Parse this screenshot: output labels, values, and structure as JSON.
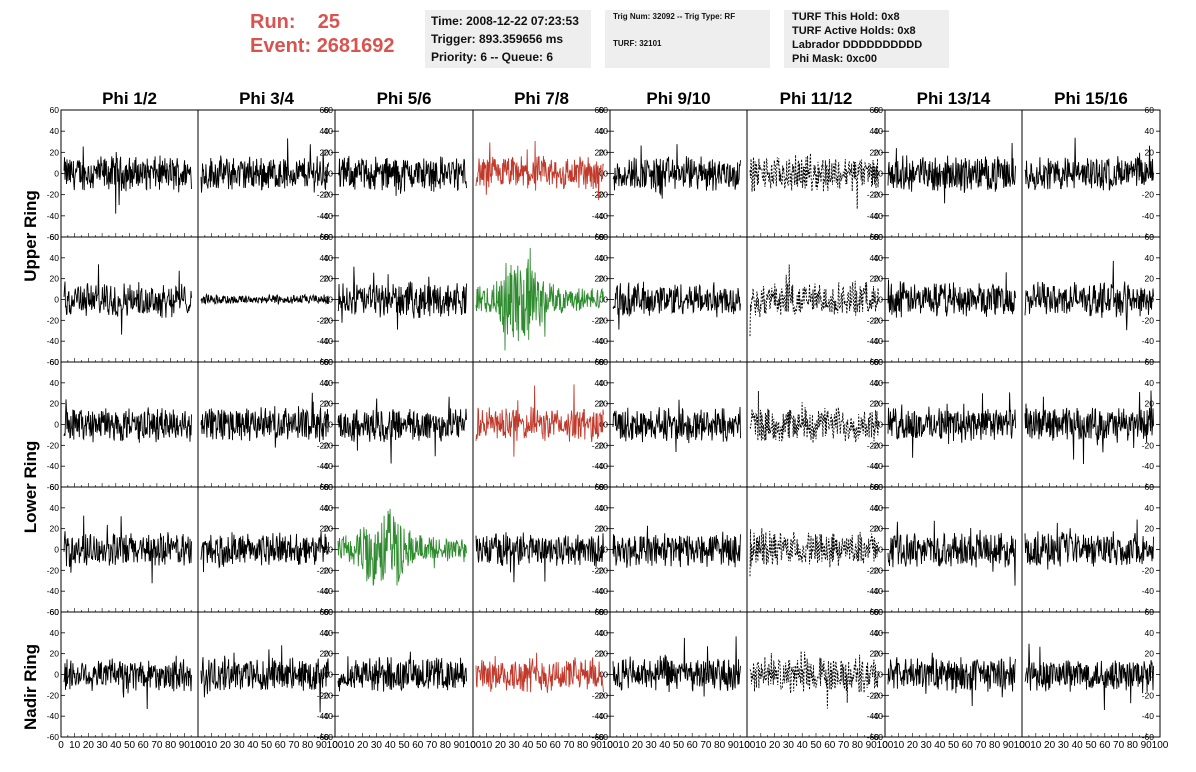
{
  "header": {
    "run_label": "Run:",
    "run_value": "25",
    "event_label": "Event:",
    "event_value": "2681692",
    "time": "Time: 2008-12-22 07:23:53",
    "trigger": "Trigger: 893.359656 ms",
    "priority": "Priority: 6 -- Queue: 6",
    "trig_num": "Trig Num: 32092 -- Trig Type: RF",
    "turf": "TURF: 32101",
    "turf_this_hold": "TURF This Hold: 0x8",
    "turf_active_holds": "TURF Active Holds: 0x8",
    "labrador": "Labrador DDDDDDDDDD",
    "phi_mask": "Phi Mask: 0xc00"
  },
  "columns": [
    "Phi 1/2",
    "Phi 3/4",
    "Phi 5/6",
    "Phi 7/8",
    "Phi 9/10",
    "Phi 11/12",
    "Phi 13/14",
    "Phi 15/16"
  ],
  "ring_labels": [
    "Upper Ring",
    "Lower Ring",
    "Nadir Ring"
  ],
  "colors": {
    "run_text": "#d9534f",
    "trigger_red": "#c0392b",
    "trigger_green": "#2e8b2e",
    "trace_default": "#000000",
    "info_box_bg": "#eeeeee"
  },
  "chart_data": {
    "type": "line",
    "ylim": [
      -60,
      60
    ],
    "yticks": [
      -60,
      -40,
      -20,
      0,
      20,
      40,
      60
    ],
    "xlim": [
      0,
      100
    ],
    "xticks": [
      0,
      10,
      20,
      30,
      40,
      50,
      60,
      70,
      80,
      90,
      100
    ],
    "rows": 5,
    "cols": 8,
    "highlighted_panels": [
      {
        "row": 0,
        "col": 3,
        "color": "red"
      },
      {
        "row": 1,
        "col": 3,
        "color": "green"
      },
      {
        "row": 2,
        "col": 3,
        "color": "red"
      },
      {
        "row": 3,
        "col": 2,
        "color": "green"
      },
      {
        "row": 4,
        "col": 3,
        "color": "red"
      }
    ],
    "dashed_column": 5,
    "quiet_panels": [
      {
        "row": 1,
        "col": 1
      }
    ]
  }
}
